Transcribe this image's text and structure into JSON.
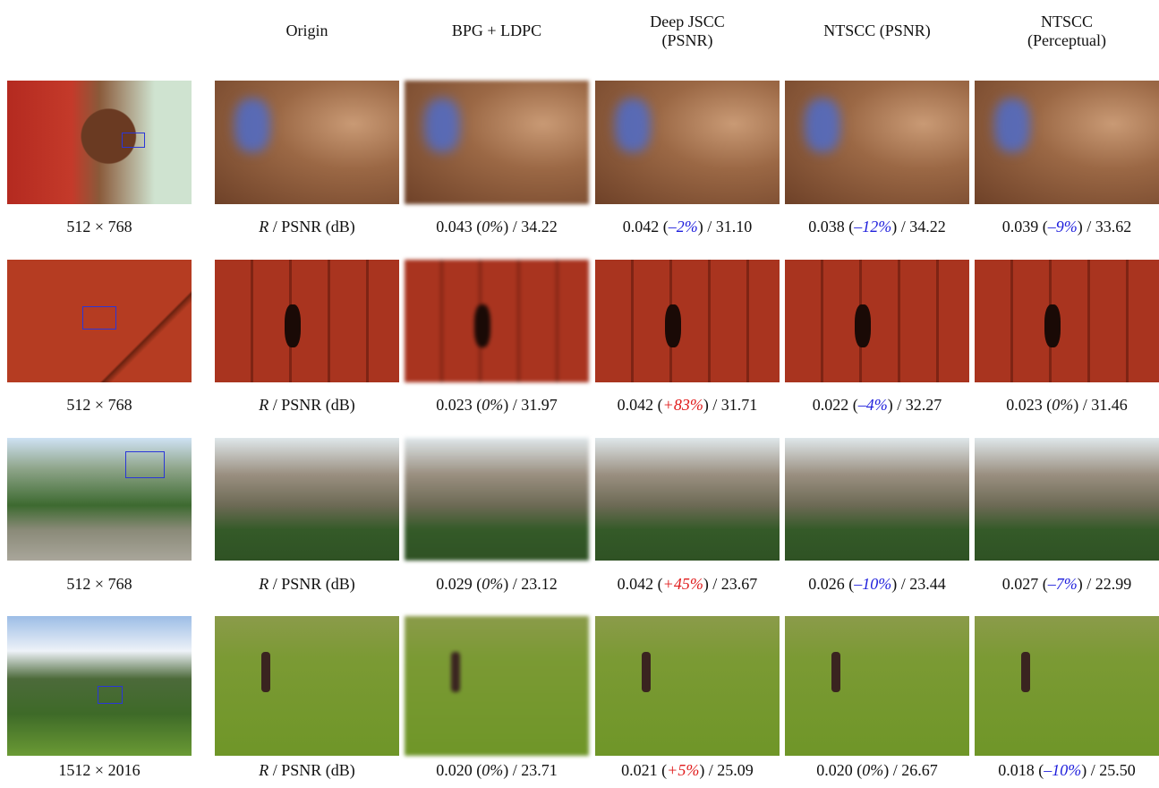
{
  "headers": [
    [
      "Origin"
    ],
    [
      "BPG + LDPC"
    ],
    [
      "Deep JSCC",
      "(PSNR)"
    ],
    [
      "NTSCC (PSNR)"
    ],
    [
      "NTSCC",
      "(Perceptual)"
    ]
  ],
  "rows": [
    {
      "size": "512 × 768",
      "metric": [
        {
          "text": "R",
          "italic": true
        },
        {
          "text": " / PSNR (dB)"
        }
      ],
      "cells": [
        [
          {
            "text": "0.043 ("
          },
          {
            "text": "0%",
            "italic": true
          },
          {
            "text": ") / 34.22"
          }
        ],
        [
          {
            "text": "0.042 ("
          },
          {
            "text": "–2%",
            "italic": true,
            "color": "#1f1fdc"
          },
          {
            "text": ") / 31.10"
          }
        ],
        [
          {
            "text": "0.038 ("
          },
          {
            "text": "–12%",
            "italic": true,
            "color": "#1f1fdc"
          },
          {
            "text": ") / 34.22"
          }
        ],
        [
          {
            "text": "0.039 ("
          },
          {
            "text": "–9%",
            "italic": true,
            "color": "#1f1fdc"
          },
          {
            "text": ") / 33.62"
          }
        ]
      ]
    },
    {
      "size": "512 × 768",
      "metric": [
        {
          "text": "R",
          "italic": true
        },
        {
          "text": " / PSNR (dB)"
        }
      ],
      "cells": [
        [
          {
            "text": "0.023 ("
          },
          {
            "text": "0%",
            "italic": true
          },
          {
            "text": ") / 31.97"
          }
        ],
        [
          {
            "text": "0.042 ("
          },
          {
            "text": "+83%",
            "italic": true,
            "color": "#e01b1b"
          },
          {
            "text": ") / 31.71"
          }
        ],
        [
          {
            "text": "0.022 ("
          },
          {
            "text": "–4%",
            "italic": true,
            "color": "#1f1fdc"
          },
          {
            "text": ") / 32.27"
          }
        ],
        [
          {
            "text": "0.023 ("
          },
          {
            "text": "0%",
            "italic": true
          },
          {
            "text": ") / 31.46"
          }
        ]
      ]
    },
    {
      "size": "512 × 768",
      "metric": [
        {
          "text": "R",
          "italic": true
        },
        {
          "text": " / PSNR (dB)"
        }
      ],
      "cells": [
        [
          {
            "text": "0.029 ("
          },
          {
            "text": "0%",
            "italic": true
          },
          {
            "text": ") / 23.12"
          }
        ],
        [
          {
            "text": "0.042 ("
          },
          {
            "text": "+45%",
            "italic": true,
            "color": "#e01b1b"
          },
          {
            "text": ") / 23.67"
          }
        ],
        [
          {
            "text": "0.026 ("
          },
          {
            "text": "–10%",
            "italic": true,
            "color": "#1f1fdc"
          },
          {
            "text": ") / 23.44"
          }
        ],
        [
          {
            "text": "0.027 ("
          },
          {
            "text": "–7%",
            "italic": true,
            "color": "#1f1fdc"
          },
          {
            "text": ") / 22.99"
          }
        ]
      ]
    },
    {
      "size": "1512 × 2016",
      "metric": [
        {
          "text": "R",
          "italic": true
        },
        {
          "text": " / PSNR (dB)"
        }
      ],
      "cells": [
        [
          {
            "text": "0.020 ("
          },
          {
            "text": "0%",
            "italic": true
          },
          {
            "text": ") / 23.71"
          }
        ],
        [
          {
            "text": "0.021 ("
          },
          {
            "text": "+5%",
            "italic": true,
            "color": "#e01b1b"
          },
          {
            "text": ") / 25.09"
          }
        ],
        [
          {
            "text": "0.020 ("
          },
          {
            "text": "0%",
            "italic": true
          },
          {
            "text": ") / 26.67"
          }
        ],
        [
          {
            "text": "0.018 ("
          },
          {
            "text": "–10%",
            "italic": true,
            "color": "#1f1fdc"
          },
          {
            "text": ") / 25.50"
          }
        ]
      ]
    }
  ]
}
